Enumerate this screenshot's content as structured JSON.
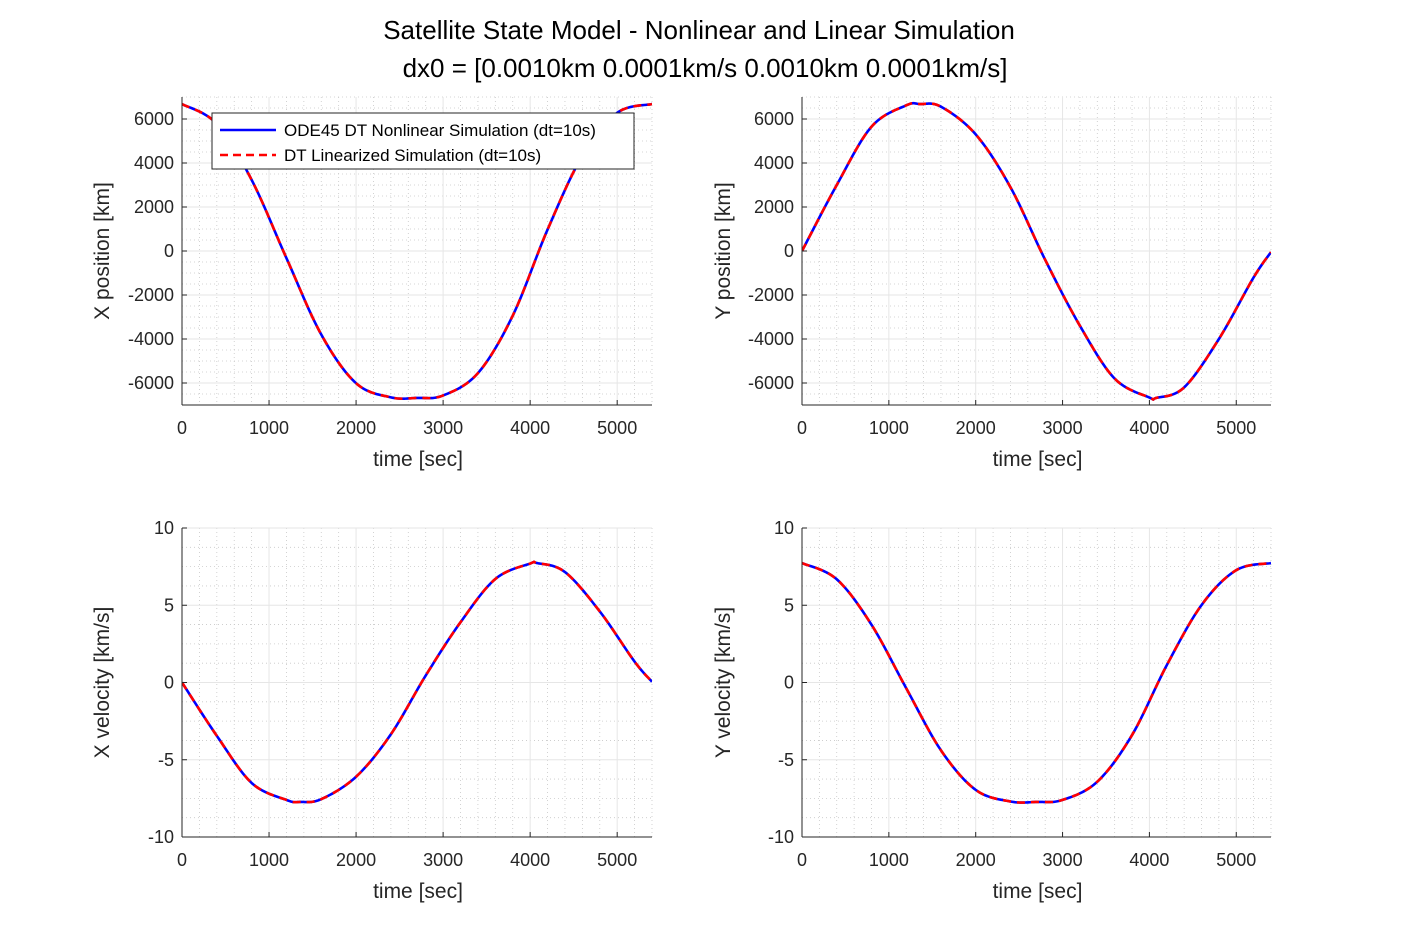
{
  "figure": {
    "title_line1": "Satellite State Model - Nonlinear and Linear Simulation",
    "title_line2": "dx0 = [0.0010km 0.0001km/s 0.0010km 0.0001km/s]"
  },
  "legend": {
    "entries": [
      {
        "name": "ODE45 DT Nonlinear Simulation (dt=10s)",
        "color": "#0000ff",
        "style": "solid"
      },
      {
        "name": "DT Linearized Simulation (dt=10s)",
        "color": "#ff0000",
        "style": "dashed"
      }
    ],
    "placement": "top-left inside X position panel"
  },
  "colors": {
    "nonlinear": "#0000ff",
    "linearized": "#ff0000",
    "grid_major": "#e6e6e6",
    "grid_minor": "#c8c8c8",
    "axis": "#262626"
  },
  "chart_data": [
    {
      "type": "line",
      "panel": "top-left",
      "xlabel": "time [sec]",
      "ylabel": "X position [km]",
      "xlim": [
        0,
        5400
      ],
      "ylim": [
        -7000,
        7000
      ],
      "xticks": [
        0,
        1000,
        2000,
        3000,
        4000,
        5000
      ],
      "yticks": [
        -6000,
        -4000,
        -2000,
        0,
        2000,
        4000,
        6000
      ],
      "ytick_labels": [
        "-6000",
        "-4000",
        "-2000",
        "0",
        "2000",
        "4000",
        "6000"
      ],
      "grid": true,
      "minor_grid": true,
      "x": [
        0,
        400,
        800,
        1200,
        1600,
        2000,
        2400,
        2700,
        3000,
        3400,
        3800,
        4200,
        4600,
        5000,
        5400
      ],
      "series": [
        {
          "name": "ODE45 DT Nonlinear Simulation (dt=10s)",
          "values": [
            6678,
            5776,
            3233,
            -323,
            -3797,
            -6009,
            -6652,
            -6678,
            -6567,
            -5550,
            -2938,
            972,
            4330,
            6279,
            6678
          ]
        },
        {
          "name": "DT Linearized Simulation (dt=10s)",
          "values": [
            6678,
            5776,
            3233,
            -323,
            -3797,
            -6009,
            -6652,
            -6678,
            -6567,
            -5550,
            -2938,
            972,
            4330,
            6279,
            6678
          ]
        }
      ]
    },
    {
      "type": "line",
      "panel": "top-right",
      "xlabel": "time [sec]",
      "ylabel": "Y position [km]",
      "xlim": [
        0,
        5400
      ],
      "ylim": [
        -7000,
        7000
      ],
      "xticks": [
        0,
        1000,
        2000,
        3000,
        4000,
        5000
      ],
      "yticks": [
        -6000,
        -4000,
        -2000,
        0,
        2000,
        4000,
        6000
      ],
      "ytick_labels": [
        "-6000",
        "-4000",
        "-2000",
        "0",
        "2000",
        "4000",
        "6000"
      ],
      "grid": true,
      "minor_grid": true,
      "x": [
        0,
        400,
        800,
        1200,
        1360,
        1600,
        2000,
        2400,
        2800,
        3200,
        3600,
        4000,
        4080,
        4400,
        4800,
        5200,
        5400
      ],
      "series": [
        {
          "name": "ODE45 DT Nonlinear Simulation (dt=10s)",
          "values": [
            0,
            3000,
            5650,
            6620,
            6678,
            6560,
            5300,
            2900,
            -400,
            -3400,
            -5800,
            -6660,
            -6678,
            -6200,
            -4000,
            -1200,
            -50
          ]
        },
        {
          "name": "DT Linearized Simulation (dt=10s)",
          "values": [
            0,
            3000,
            5650,
            6620,
            6678,
            6560,
            5300,
            2900,
            -400,
            -3400,
            -5800,
            -6660,
            -6678,
            -6200,
            -4000,
            -1200,
            -50
          ]
        }
      ]
    },
    {
      "type": "line",
      "panel": "bottom-left",
      "xlabel": "time [sec]",
      "ylabel": "X velocity [km/s]",
      "xlim": [
        0,
        5400
      ],
      "ylim": [
        -10,
        10
      ],
      "xticks": [
        0,
        1000,
        2000,
        3000,
        4000,
        5000
      ],
      "yticks": [
        -10,
        -5,
        0,
        5,
        10
      ],
      "ytick_labels": [
        "-10",
        "-5",
        "0",
        "5",
        "10"
      ],
      "grid": true,
      "minor_grid": true,
      "x": [
        0,
        400,
        800,
        1200,
        1360,
        1600,
        2000,
        2400,
        2800,
        3200,
        3600,
        4000,
        4080,
        4400,
        4800,
        5200,
        5400
      ],
      "series": [
        {
          "name": "ODE45 DT Nonlinear Simulation (dt=10s)",
          "values": [
            0,
            -3.45,
            -6.5,
            -7.6,
            -7.73,
            -7.55,
            -6.1,
            -3.35,
            0.45,
            3.9,
            6.7,
            7.7,
            7.73,
            7.15,
            4.6,
            1.35,
            0.05
          ]
        },
        {
          "name": "DT Linearized Simulation (dt=10s)",
          "values": [
            0,
            -3.45,
            -6.5,
            -7.6,
            -7.73,
            -7.55,
            -6.1,
            -3.35,
            0.45,
            3.9,
            6.7,
            7.7,
            7.73,
            7.15,
            4.6,
            1.35,
            0.05
          ]
        }
      ]
    },
    {
      "type": "line",
      "panel": "bottom-right",
      "xlabel": "time [sec]",
      "ylabel": "Y velocity [km/s]",
      "xlim": [
        0,
        5400
      ],
      "ylim": [
        -10,
        10
      ],
      "xticks": [
        0,
        1000,
        2000,
        3000,
        4000,
        5000
      ],
      "yticks": [
        -10,
        -5,
        0,
        5,
        10
      ],
      "ytick_labels": [
        "-10",
        "-5",
        "0",
        "5",
        "10"
      ],
      "grid": true,
      "minor_grid": true,
      "x": [
        0,
        400,
        800,
        1200,
        1600,
        2000,
        2400,
        2700,
        3000,
        3400,
        3800,
        4200,
        4600,
        5000,
        5400
      ],
      "series": [
        {
          "name": "ODE45 DT Nonlinear Simulation (dt=10s)",
          "values": [
            7.73,
            6.68,
            3.74,
            -0.37,
            -4.39,
            -6.95,
            -7.7,
            -7.73,
            -7.6,
            -6.42,
            -3.4,
            1.12,
            5.01,
            7.27,
            7.73
          ]
        },
        {
          "name": "DT Linearized Simulation (dt=10s)",
          "values": [
            7.73,
            6.68,
            3.74,
            -0.37,
            -4.39,
            -6.95,
            -7.7,
            -7.73,
            -7.6,
            -6.42,
            -3.4,
            1.12,
            5.01,
            7.27,
            7.73
          ]
        }
      ]
    }
  ]
}
